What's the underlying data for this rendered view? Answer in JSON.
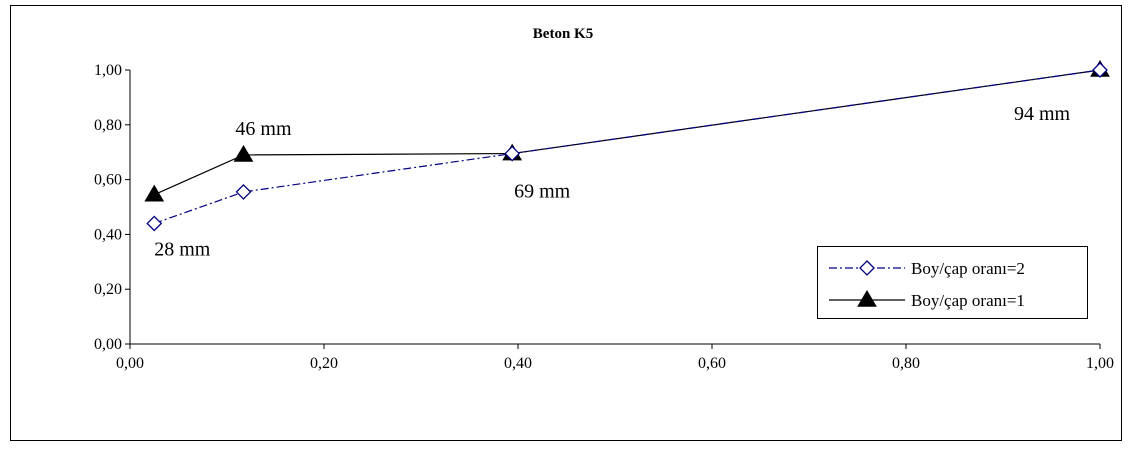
{
  "chart_data": {
    "type": "line",
    "title": "Beton K5",
    "xlabel": "",
    "ylabel": "",
    "xlim": [
      0,
      1
    ],
    "ylim": [
      0,
      1
    ],
    "x_ticks": [
      "0,00",
      "0,20",
      "0,40",
      "0,60",
      "0,80",
      "1,00"
    ],
    "y_ticks": [
      "0,00",
      "0,20",
      "0,40",
      "0,60",
      "0,80",
      "1,00"
    ],
    "grid": false,
    "legend_position": "bottom-right",
    "series": [
      {
        "name": "Boy/çap oranı=2",
        "color": "#00007f",
        "line_style": "dash-dot",
        "marker": "diamond-open",
        "x": [
          0.025,
          0.117,
          0.394,
          1.0
        ],
        "y": [
          0.44,
          0.555,
          0.695,
          1.0
        ]
      },
      {
        "name": "Boy/çap oranı=1",
        "color": "#000000",
        "line_style": "solid",
        "marker": "triangle-filled",
        "x": [
          0.025,
          0.117,
          0.394,
          1.0
        ],
        "y": [
          0.545,
          0.69,
          0.695,
          1.0
        ]
      }
    ],
    "annotations": [
      {
        "text": "28 mm",
        "x": 0.025,
        "y": 0.44
      },
      {
        "text": "46 mm",
        "x": 0.117,
        "y": 0.69
      },
      {
        "text": "69 mm",
        "x": 0.394,
        "y": 0.695
      },
      {
        "text": "94 mm",
        "x": 1.0,
        "y": 1.0
      }
    ]
  }
}
